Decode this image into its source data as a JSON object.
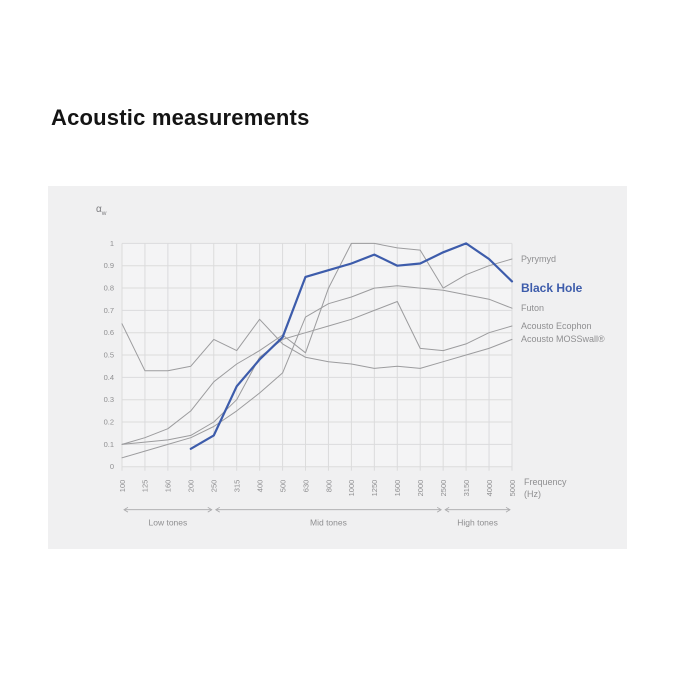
{
  "page": {
    "title": "Acoustic measurements"
  },
  "panel": {
    "bg": "#f0f0f1",
    "plot_bg": "#f4f4f5"
  },
  "axis": {
    "y_title_base": "α",
    "y_title_sub": "w",
    "x_title_line1": "Frequency",
    "x_title_line2": "(Hz)"
  },
  "chart_data": {
    "type": "line",
    "title": "Acoustic measurements",
    "xlabel": "Frequency (Hz)",
    "ylabel": "αw",
    "ylim": [
      0,
      1
    ],
    "grid": true,
    "legend_position": "right",
    "categories": [
      "100",
      "125",
      "160",
      "200",
      "250",
      "315",
      "400",
      "500",
      "630",
      "800",
      "1000",
      "1250",
      "1600",
      "2000",
      "2500",
      "3150",
      "4000",
      "5000"
    ],
    "y_ticks": [
      "1",
      "0.9",
      "0.8",
      "0.7",
      "0.6",
      "0.5",
      "0.4",
      "0.3",
      "0.2",
      "0.1",
      "0"
    ],
    "y_tick_values": [
      1,
      0.9,
      0.8,
      0.7,
      0.6,
      0.5,
      0.4,
      0.3,
      0.2,
      0.1,
      0
    ],
    "series": [
      {
        "name": "Pyrymyd",
        "color": "#9c9c9e",
        "width": 1,
        "emphasis": false,
        "values": [
          0.1,
          0.13,
          0.17,
          0.25,
          0.38,
          0.46,
          0.52,
          0.59,
          0.51,
          0.8,
          1.0,
          1.0,
          0.98,
          0.97,
          0.8,
          0.86,
          0.9,
          0.93
        ]
      },
      {
        "name": "Futon",
        "color": "#9c9c9e",
        "width": 1,
        "emphasis": false,
        "values": [
          0.04,
          0.07,
          0.1,
          0.13,
          0.18,
          0.25,
          0.33,
          0.42,
          0.67,
          0.73,
          0.76,
          0.8,
          0.81,
          0.8,
          0.79,
          0.77,
          0.75,
          0.71
        ]
      },
      {
        "name": "Acousto Ecophon",
        "color": "#9c9c9e",
        "width": 1,
        "emphasis": false,
        "values": [
          0.1,
          0.11,
          0.12,
          0.14,
          0.2,
          0.3,
          0.49,
          0.57,
          0.6,
          0.63,
          0.66,
          0.7,
          0.74,
          0.53,
          0.52,
          0.55,
          0.6,
          0.63
        ]
      },
      {
        "name": "Acousto MOSSwall®",
        "color": "#9c9c9e",
        "width": 1,
        "emphasis": false,
        "values": [
          0.64,
          0.43,
          0.43,
          0.45,
          0.57,
          0.52,
          0.66,
          0.55,
          0.49,
          0.47,
          0.46,
          0.44,
          0.45,
          0.44,
          0.47,
          0.5,
          0.53,
          0.57
        ]
      },
      {
        "name": "Black Hole",
        "color": "#3d5cab",
        "width": 2.2,
        "emphasis": true,
        "values": [
          null,
          null,
          null,
          0.08,
          0.14,
          0.36,
          0.48,
          0.58,
          0.85,
          0.88,
          0.91,
          0.95,
          0.9,
          0.91,
          0.96,
          1.0,
          0.93,
          0.83
        ]
      }
    ],
    "bands": [
      {
        "label": "Low tones",
        "from_index": 0,
        "to_index": 4
      },
      {
        "label": "Mid tones",
        "from_index": 4,
        "to_index": 14
      },
      {
        "label": "High tones",
        "from_index": 14,
        "to_index": 17
      }
    ],
    "colors": {
      "gridline": "#dbdbdc",
      "axis_text": "#8f8f91",
      "band": "#a8a8aa",
      "accent": "#3d5cab",
      "gray_line": "#9c9c9e"
    }
  }
}
